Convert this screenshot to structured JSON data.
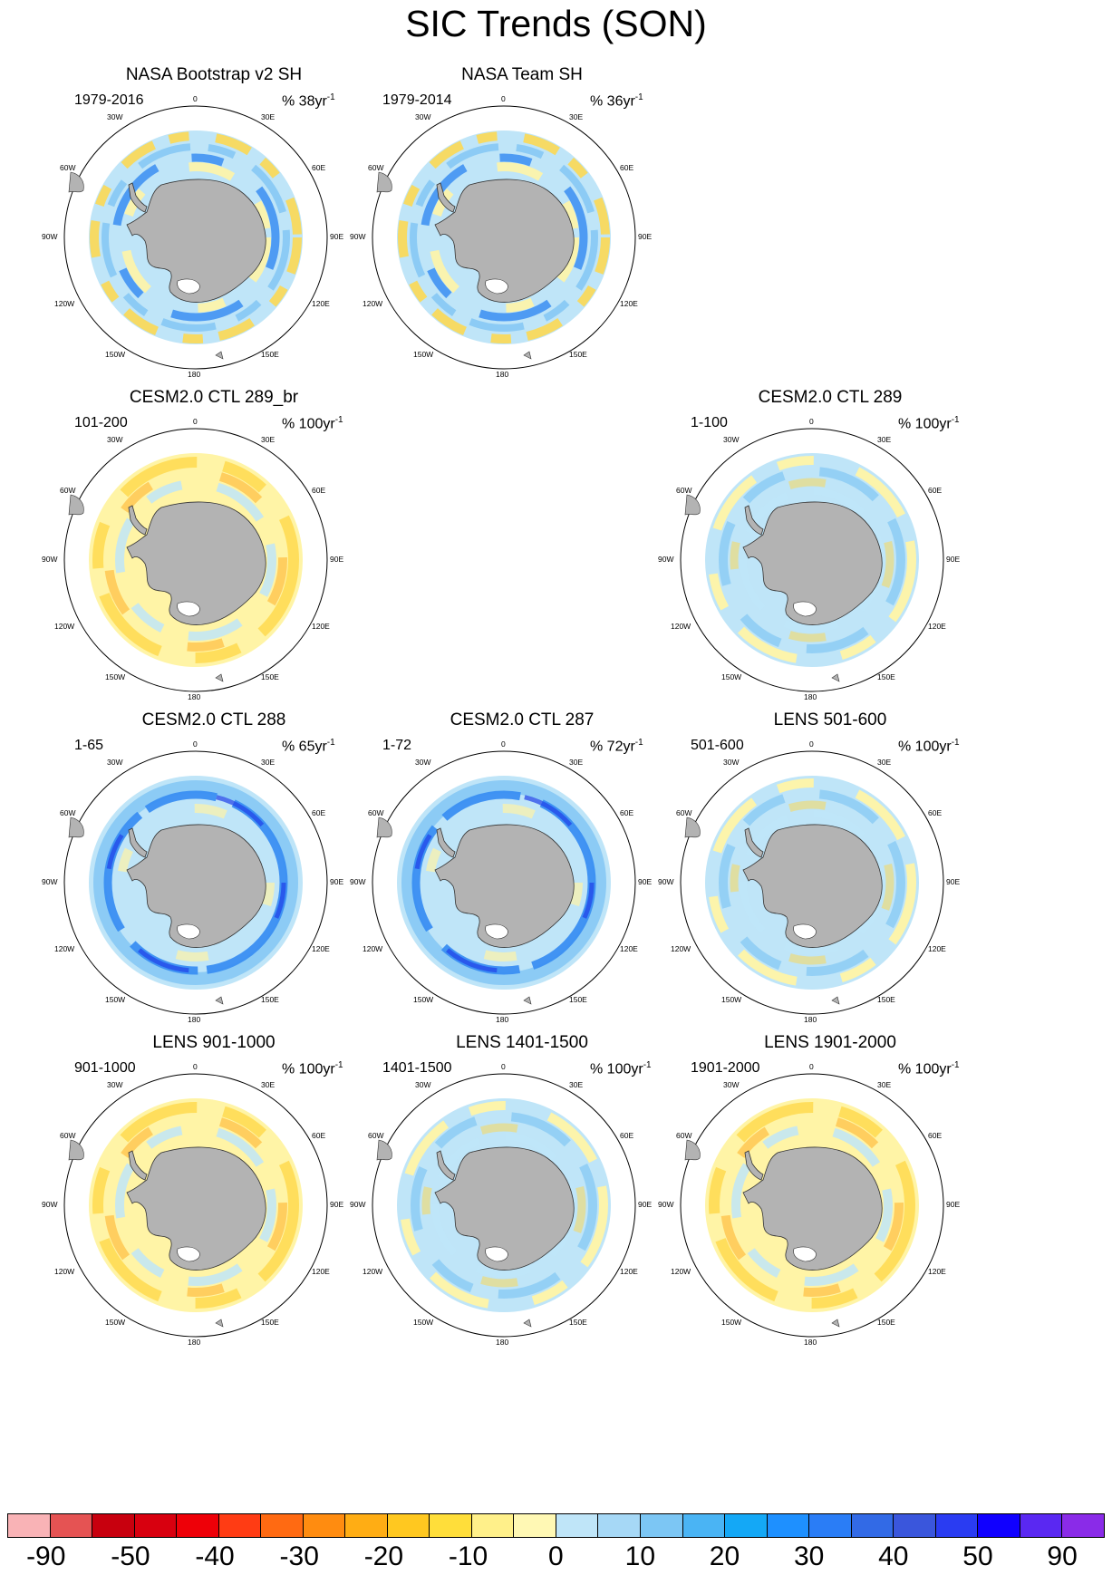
{
  "title": "SIC Trends (SON)",
  "colors": {
    "land": "#b3b3b3",
    "levels": [
      "#f9b3b6",
      "#e55353",
      "#c8000e",
      "#d8000f",
      "#ee0008",
      "#ff3c14",
      "#ff6a12",
      "#ff8c10",
      "#ffad14",
      "#ffc820",
      "#ffde3a",
      "#fff08a",
      "#fff8b4",
      "#bfe5f8",
      "#a6d8f6",
      "#7cc6f4",
      "#4ab4f4",
      "#14a8f6",
      "#1e90ff",
      "#2a7df6",
      "#326ae6",
      "#3a56dc",
      "#2a3cf2",
      "#1000ff",
      "#5a28f2",
      "#8a2be8"
    ],
    "ring": {
      "neg_light": "#fff4a6",
      "neg_mid": "#ffd84a",
      "neg_strong": "#ffae24",
      "pos_light": "#bfe5f8",
      "pos_mid": "#86c8f4",
      "pos_strong": "#3a8ef2",
      "pos_deep": "#2040e8"
    }
  },
  "colorbar": {
    "labels": [
      "-90",
      "-50",
      "-40",
      "-30",
      "-20",
      "-10",
      "0",
      "10",
      "20",
      "30",
      "40",
      "50",
      "90"
    ]
  },
  "map_labels": {
    "top": "0",
    "bottom": "180",
    "left": "90W",
    "right": "90E",
    "ul1": "30W",
    "ul2": "60W",
    "ur1": "30E",
    "ur2": "60E",
    "ll1": "120W",
    "ll2": "150W",
    "lr1": "120E",
    "lr2": "150E"
  },
  "chart_data": [
    {
      "type": "heatmap",
      "title": "NASA Bootstrap v2 SH",
      "period": "1979-2016",
      "units": "% 38yr",
      "units_exp": "-1",
      "pattern": "obs"
    },
    {
      "type": "heatmap",
      "title": "NASA Team SH",
      "period": "1979-2014",
      "units": "% 36yr",
      "units_exp": "-1",
      "pattern": "obs"
    },
    {
      "type": "heatmap",
      "title": "CESM2.0 CTL 289_br",
      "period": "101-200",
      "units": "% 100yr",
      "units_exp": "-1",
      "pattern": "neg"
    },
    {
      "type": "heatmap",
      "title": "CESM2.0 CTL 289",
      "period": "1-100",
      "units": "% 100yr",
      "units_exp": "-1",
      "pattern": "mixed"
    },
    {
      "type": "heatmap",
      "title": "CESM2.0 CTL 288",
      "period": "1-65",
      "units": "% 65yr",
      "units_exp": "-1",
      "pattern": "pos"
    },
    {
      "type": "heatmap",
      "title": "CESM2.0 CTL 287",
      "period": "1-72",
      "units": "% 72yr",
      "units_exp": "-1",
      "pattern": "pos"
    },
    {
      "type": "heatmap",
      "title": "LENS 501-600",
      "period": "501-600",
      "units": "% 100yr",
      "units_exp": "-1",
      "pattern": "mixed"
    },
    {
      "type": "heatmap",
      "title": "LENS 901-1000",
      "period": "901-1000",
      "units": "% 100yr",
      "units_exp": "-1",
      "pattern": "neg"
    },
    {
      "type": "heatmap",
      "title": "LENS 1401-1500",
      "period": "1401-1500",
      "units": "% 100yr",
      "units_exp": "-1",
      "pattern": "mixed"
    },
    {
      "type": "heatmap",
      "title": "LENS 1901-2000",
      "period": "1901-2000",
      "units": "% 100yr",
      "units_exp": "-1",
      "pattern": "neg"
    }
  ]
}
